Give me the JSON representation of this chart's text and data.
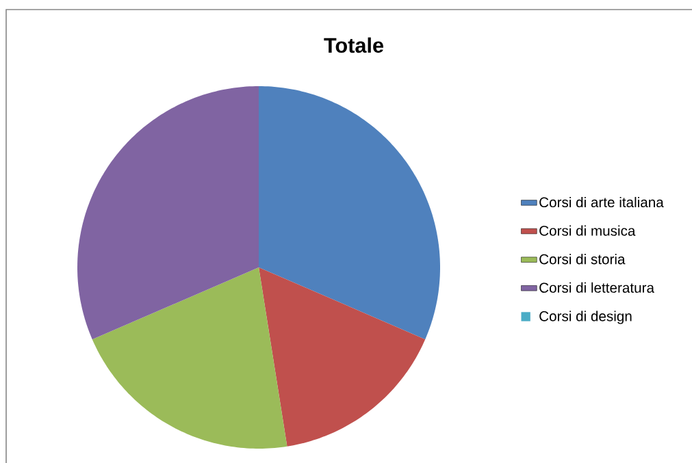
{
  "chart_data": {
    "type": "pie",
    "title": "Totale",
    "categories": [
      "Corsi di arte italiana",
      "Corsi di musica",
      "Corsi di storia",
      "Corsi di letteratura",
      "Corsi di design"
    ],
    "values": [
      31.5,
      16,
      21,
      31.5,
      0
    ],
    "colors": [
      "#4f81bd",
      "#c0504d",
      "#9bbb59",
      "#8064a2",
      "#4bacc6"
    ],
    "legend": "right"
  }
}
